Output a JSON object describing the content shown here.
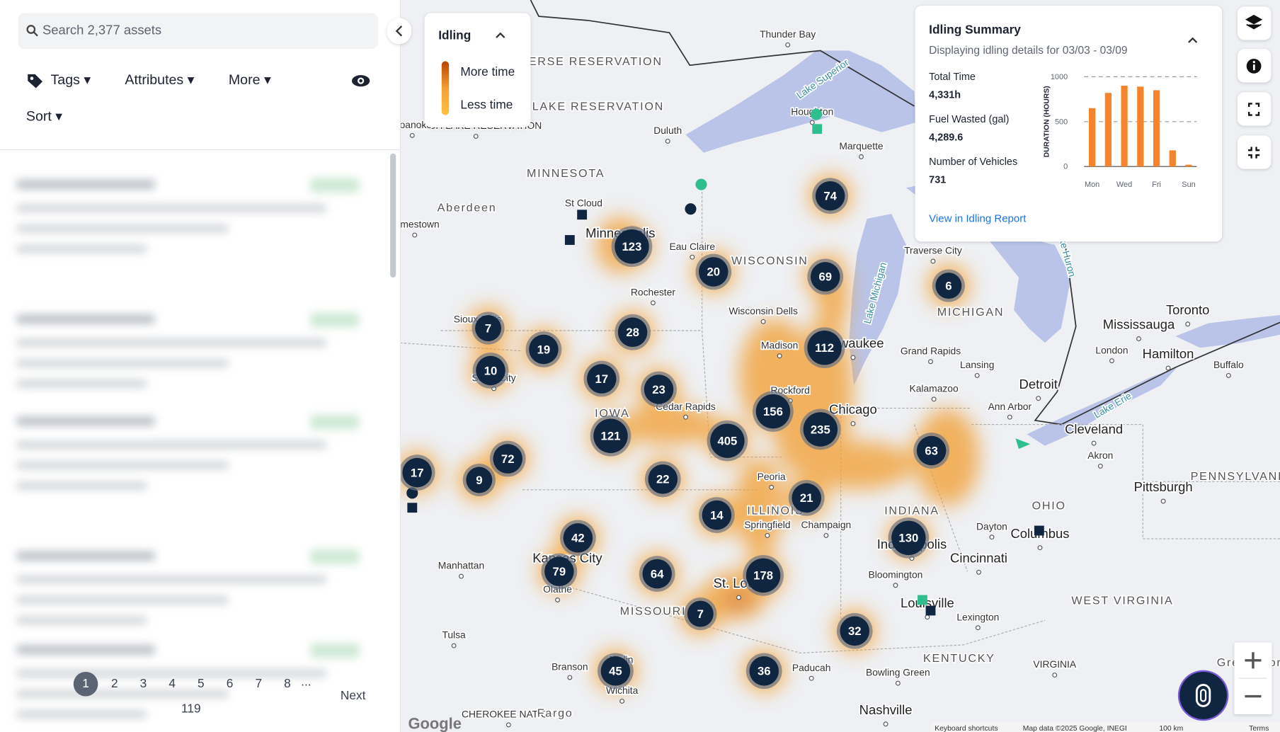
{
  "sidebar": {
    "search": "Search 2,377 assets",
    "filters": [
      "Tags",
      "Attributes",
      "More"
    ],
    "sort": "Sort",
    "pagination": {
      "pages": [
        1,
        2,
        3,
        4,
        5,
        6,
        7,
        8
      ],
      "ellipsis": "...",
      "last": 119,
      "next": "Next"
    }
  },
  "legend": {
    "title": "Idling",
    "high": "More time",
    "low": "Less time"
  },
  "summary": {
    "title": "Idling Summary",
    "subtitle": "Displaying idling details for 03/03 - 03/09",
    "stats": [
      {
        "label": "Total Time",
        "value": "4,331h"
      },
      {
        "label": "Fuel Wasted (gal)",
        "value": "4,289.6"
      },
      {
        "label": "Number of Vehicles",
        "value": "731"
      }
    ],
    "link": "View in Idling Report",
    "chart": {
      "type": "bar",
      "y_label": "DURATION (HOURS)",
      "categories": [
        "Mon",
        null,
        "Wed",
        null,
        "Fri",
        null,
        "Sun"
      ],
      "values": [
        650,
        820,
        900,
        890,
        850,
        180,
        20
      ],
      "color": "#f5842b",
      "ylim": [
        0,
        1000
      ],
      "yticks": [
        0,
        500,
        1000
      ],
      "grid": true
    }
  },
  "map": {
    "clusters": [
      123,
      20,
      69,
      74,
      6,
      7,
      19,
      28,
      10,
      17,
      23,
      112,
      156,
      235,
      405,
      121,
      72,
      17,
      9,
      22,
      63,
      21,
      14,
      42,
      79,
      64,
      178,
      130,
      7,
      32,
      45,
      36
    ],
    "labels": [
      "Thunder Bay",
      "Lake Superior",
      "Houghton",
      "Marquette",
      "Duluth",
      "MINNESOTA",
      "St Cloud",
      "Minneapolis",
      "Eau Claire",
      "WISCONSIN",
      "Rochester",
      "Wisconsin Dells",
      "Traverse City",
      "MICHIGAN",
      "Lake Michigan",
      "Lake Huron",
      "Toronto",
      "Mississauga",
      "Hamilton",
      "London",
      "Buffalo",
      "Grand Rapids",
      "Lansing",
      "Detroit",
      "Kalamazoo",
      "Ann Arbor",
      "Cleveland",
      "Lake Erie",
      "Akron",
      "Pittsburgh",
      "PENNSYLVANIA",
      "OHIO",
      "Dayton",
      "Columbus",
      "Cincinnati",
      "INDIANA",
      "Indianapolis",
      "Bloomington",
      "Louisville",
      "Lexington",
      "WEST VIRGINIA",
      "KENTUCKY",
      "Bowling Green",
      "Nashville",
      "Paducah",
      "ILLINOIS",
      "Springfield",
      "Champaign",
      "Chicago",
      "Milwaukee",
      "Madison",
      "Rockford",
      "Peoria",
      "IOWA",
      "Cedar Rapids",
      "Sioux Falls",
      "Sioux City",
      "Kansas City",
      "Manhattan",
      "Olathe",
      "MISSOURI",
      "St. Louis",
      "Joplin",
      "Branson",
      "Wichita",
      "Tulsa",
      "CHEROKEE NATION",
      "Fargo",
      "LEECH LAKE RESERVATION",
      "RED LAKE RESERVATION",
      "LAKE TRAVERSE RESERVATION",
      "Aberdeen",
      "Jamestown",
      "Roanoke",
      "VIRGINIA",
      "Greensboro"
    ],
    "footer": [
      "Keyboard shortcuts",
      "Map data ©2025 Google, INEGI",
      "100 km",
      "Terms"
    ],
    "logo": "Google"
  }
}
